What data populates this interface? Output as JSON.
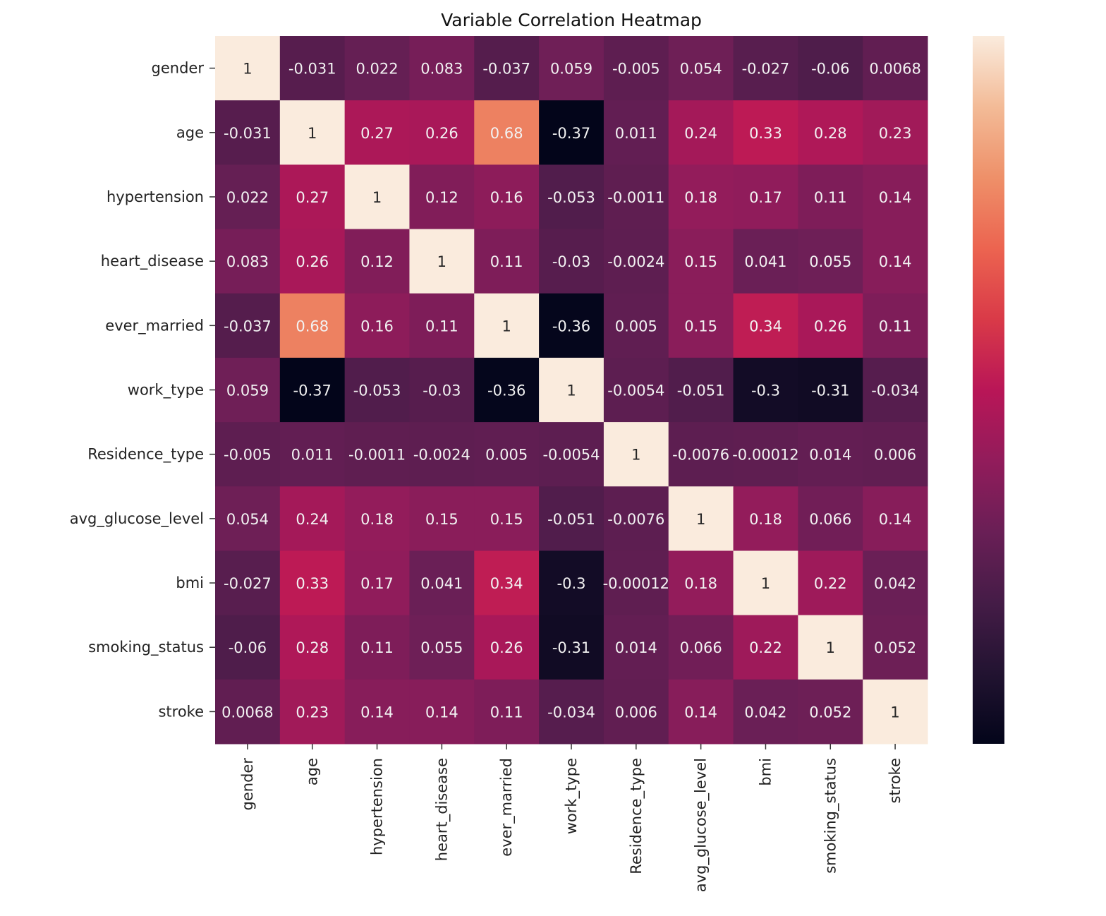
{
  "chart_data": {
    "type": "heatmap",
    "title": "Variable Correlation Heatmap",
    "xlabel": "",
    "ylabel": "",
    "labels": [
      "gender",
      "age",
      "hypertension",
      "heart_disease",
      "ever_married",
      "work_type",
      "Residence_type",
      "avg_glucose_level",
      "bmi",
      "smoking_status",
      "stroke"
    ],
    "matrix": [
      [
        "1",
        "-0.031",
        "0.022",
        "0.083",
        "-0.037",
        "0.059",
        "-0.005",
        "0.054",
        "-0.027",
        "-0.06",
        "0.0068"
      ],
      [
        "-0.031",
        "1",
        "0.27",
        "0.26",
        "0.68",
        "-0.37",
        "0.011",
        "0.24",
        "0.33",
        "0.28",
        "0.23"
      ],
      [
        "0.022",
        "0.27",
        "1",
        "0.12",
        "0.16",
        "-0.053",
        "-0.0011",
        "0.18",
        "0.17",
        "0.11",
        "0.14"
      ],
      [
        "0.083",
        "0.26",
        "0.12",
        "1",
        "0.11",
        "-0.03",
        "-0.0024",
        "0.15",
        "0.041",
        "0.055",
        "0.14"
      ],
      [
        "-0.037",
        "0.68",
        "0.16",
        "0.11",
        "1",
        "-0.36",
        "0.005",
        "0.15",
        "0.34",
        "0.26",
        "0.11"
      ],
      [
        "0.059",
        "-0.37",
        "-0.053",
        "-0.03",
        "-0.36",
        "1",
        "-0.0054",
        "-0.051",
        "-0.3",
        "-0.31",
        "-0.034"
      ],
      [
        "-0.005",
        "0.011",
        "-0.0011",
        "-0.0024",
        "0.005",
        "-0.0054",
        "1",
        "-0.0076",
        "-0.00012",
        "0.014",
        "0.006"
      ],
      [
        "0.054",
        "0.24",
        "0.18",
        "0.15",
        "0.15",
        "-0.051",
        "-0.0076",
        "1",
        "0.18",
        "0.066",
        "0.14"
      ],
      [
        "-0.027",
        "0.33",
        "0.17",
        "0.041",
        "0.34",
        "-0.3",
        "-0.00012",
        "0.18",
        "1",
        "0.22",
        "0.042"
      ],
      [
        "-0.06",
        "0.28",
        "0.11",
        "0.055",
        "0.26",
        "-0.31",
        "0.014",
        "0.066",
        "0.22",
        "1",
        "0.052"
      ],
      [
        "0.0068",
        "0.23",
        "0.14",
        "0.14",
        "0.11",
        "-0.034",
        "0.006",
        "0.14",
        "0.042",
        "0.052",
        "1"
      ]
    ],
    "colormap": "rocket",
    "vmin": -0.37,
    "vmax": 1,
    "colorbar": true,
    "colorbar_ticks": [],
    "grid": false
  }
}
